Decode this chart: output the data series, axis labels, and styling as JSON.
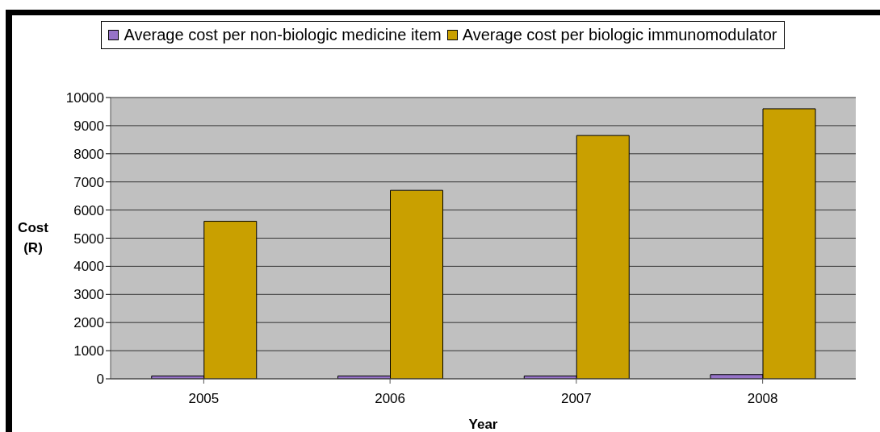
{
  "chart_data": {
    "type": "bar",
    "categories": [
      "2005",
      "2006",
      "2007",
      "2008"
    ],
    "series": [
      {
        "name": "Average cost per non-biologic medicine item",
        "color": "#9673c8",
        "values": [
          100,
          100,
          100,
          150
        ]
      },
      {
        "name": "Average cost per biologic immunomodulator",
        "color": "#c9a000",
        "values": [
          5600,
          6700,
          8650,
          9600
        ]
      }
    ],
    "xlabel": "Year",
    "ylabel": "Cost (R)",
    "ylim": [
      0,
      10000
    ],
    "yticks": [
      0,
      1000,
      2000,
      3000,
      4000,
      5000,
      6000,
      7000,
      8000,
      9000,
      10000
    ],
    "grid": "y",
    "legend": "top"
  }
}
